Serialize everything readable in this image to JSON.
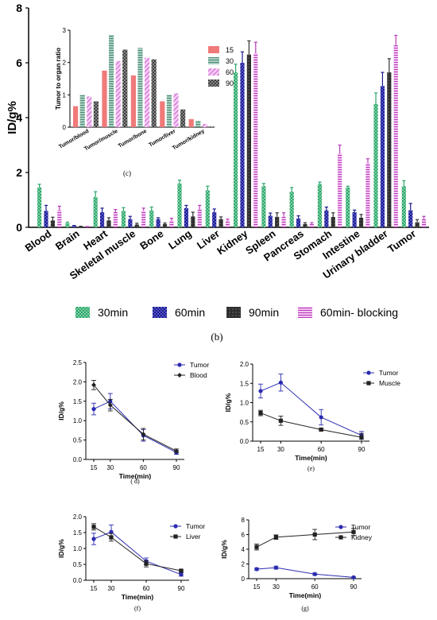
{
  "colors": {
    "m30": "#2ca56b",
    "m60": "#1a1a8c",
    "m90": "#333333",
    "m60b": "#b83ab8",
    "inset15": "#f07a7a",
    "inset30": "#6aa08e",
    "inset60": "#e99be9",
    "inset90": "#555555",
    "lineTumor": "#2b2bb0",
    "lineOther": "#222222"
  },
  "chart_data": [
    {
      "id": "b",
      "type": "bar",
      "caption": "(b)",
      "ylabel": "ID/g%",
      "ylim": [
        0,
        8
      ],
      "yticks": [
        "0",
        "2",
        "4",
        "6",
        "8"
      ],
      "categories": [
        "Blood",
        "Brain",
        "Heart",
        "Skeletal muscle",
        "Bone",
        "Lung",
        "Liver",
        "Kidney",
        "Spleen",
        "Pancreas",
        "Stomach",
        "Intestine",
        "Urinary bladder",
        "Tumor"
      ],
      "series": [
        {
          "name": "30min",
          "values": [
            1.45,
            0.15,
            1.1,
            0.6,
            0.62,
            1.6,
            1.35,
            5.65,
            1.5,
            1.3,
            1.58,
            1.45,
            4.5,
            1.5
          ],
          "errors": [
            0.12,
            0.04,
            0.2,
            0.12,
            0.12,
            0.12,
            0.15,
            0.3,
            0.1,
            0.15,
            0.07,
            0.05,
            0.4,
            0.2
          ]
        },
        {
          "name": "60min",
          "values": [
            0.6,
            0.05,
            0.55,
            0.3,
            0.3,
            0.7,
            0.55,
            6.0,
            0.42,
            0.32,
            0.62,
            0.55,
            5.15,
            0.62
          ],
          "errors": [
            0.2,
            0.02,
            0.15,
            0.1,
            0.05,
            0.1,
            0.12,
            0.4,
            0.1,
            0.1,
            0.12,
            0.08,
            0.5,
            0.25
          ]
        },
        {
          "name": "90min",
          "values": [
            0.25,
            0.03,
            0.25,
            0.1,
            0.12,
            0.4,
            0.3,
            6.3,
            0.38,
            0.12,
            0.38,
            0.35,
            5.65,
            0.18
          ],
          "errors": [
            0.12,
            0.01,
            0.1,
            0.05,
            0.04,
            0.15,
            0.08,
            0.5,
            0.15,
            0.05,
            0.15,
            0.12,
            0.5,
            0.1
          ]
        },
        {
          "name": "60min- blocking",
          "values": [
            0.62,
            0.02,
            0.55,
            0.6,
            0.25,
            0.65,
            0.25,
            6.35,
            0.38,
            0.12,
            2.7,
            2.35,
            6.65,
            0.3
          ],
          "errors": [
            0.15,
            0.01,
            0.1,
            0.1,
            0.08,
            0.15,
            0.05,
            0.4,
            0.15,
            0.05,
            0.3,
            0.15,
            0.35,
            0.1
          ]
        }
      ],
      "legend": "bottom"
    },
    {
      "id": "c",
      "type": "bar",
      "caption": "(c)",
      "ylabel": "Tumor to organ ratio",
      "ylim": [
        0,
        3
      ],
      "yticks": [
        "0",
        "1",
        "2",
        "3"
      ],
      "categories": [
        "Tumor/blood",
        "Tumor/muscle",
        "Tumor/bone",
        "Tumor/liver",
        "Tumor/kidney"
      ],
      "series": [
        {
          "name": "15",
          "values": [
            0.65,
            1.75,
            1.6,
            0.8,
            0.25
          ]
        },
        {
          "name": "30",
          "values": [
            1.0,
            2.85,
            2.45,
            1.0,
            0.2
          ]
        },
        {
          "name": "60",
          "values": [
            0.95,
            2.05,
            2.15,
            1.05,
            0.1
          ]
        },
        {
          "name": "90",
          "values": [
            0.8,
            2.4,
            2.1,
            0.55,
            0.02
          ]
        }
      ],
      "legend": "right"
    },
    {
      "id": "d",
      "type": "line",
      "caption": "( d)",
      "xlabel": "Time(min)",
      "ylabel": "ID/g%",
      "x": [
        15,
        30,
        60,
        90
      ],
      "xticks": [
        "15",
        "30",
        "60",
        "90"
      ],
      "ylim": [
        0,
        2.5
      ],
      "yticks": [
        "0.0",
        "0.5",
        "1.0",
        "1.5",
        "2.0",
        "2.5"
      ],
      "series": [
        {
          "name": "Tumor",
          "values": [
            1.3,
            1.5,
            0.62,
            0.18
          ],
          "errors": [
            0.15,
            0.2,
            0.15,
            0.05
          ]
        },
        {
          "name": "Blood",
          "values": [
            1.92,
            1.4,
            0.65,
            0.22
          ],
          "errors": [
            0.12,
            0.15,
            0.15,
            0.05
          ]
        }
      ],
      "legend": "top-right"
    },
    {
      "id": "e",
      "type": "line",
      "caption": "(e)",
      "xlabel": "Time(min)",
      "ylabel": "ID/g%",
      "x": [
        15,
        30,
        60,
        90
      ],
      "xticks": [
        "15",
        "30",
        "60",
        "90"
      ],
      "ylim": [
        0,
        2.0
      ],
      "yticks": [
        "0.0",
        "0.5",
        "1.0",
        "1.5",
        "2.0"
      ],
      "series": [
        {
          "name": "Tumor",
          "values": [
            1.3,
            1.52,
            0.62,
            0.15
          ],
          "errors": [
            0.18,
            0.22,
            0.2,
            0.1
          ]
        },
        {
          "name": "Muscle",
          "values": [
            0.73,
            0.53,
            0.3,
            0.1
          ],
          "errors": [
            0.07,
            0.12,
            0.03,
            0.1
          ]
        }
      ],
      "legend": "top-right"
    },
    {
      "id": "f",
      "type": "line",
      "caption": "(f)",
      "xlabel": "Time(min)",
      "ylabel": "ID/g%",
      "x": [
        15,
        30,
        60,
        90
      ],
      "xticks": [
        "15",
        "30",
        "60",
        "90"
      ],
      "ylim": [
        0,
        2.0
      ],
      "yticks": [
        "0.0",
        "0.5",
        "1.0",
        "1.5",
        "2.0"
      ],
      "series": [
        {
          "name": "Tumor",
          "values": [
            1.3,
            1.52,
            0.6,
            0.18
          ],
          "errors": [
            0.18,
            0.22,
            0.1,
            0.05
          ]
        },
        {
          "name": "Liver",
          "values": [
            1.68,
            1.35,
            0.52,
            0.3
          ],
          "errors": [
            0.1,
            0.12,
            0.1,
            0.03
          ]
        }
      ],
      "legend": "top-right"
    },
    {
      "id": "g",
      "type": "line",
      "caption": "(g)",
      "xlabel": "Time(min)",
      "ylabel": "ID/g%",
      "x": [
        15,
        30,
        60,
        90
      ],
      "xticks": [
        "15",
        "30",
        "60",
        "90"
      ],
      "ylim": [
        0,
        8
      ],
      "yticks": [
        "0",
        "2",
        "4",
        "6",
        "8"
      ],
      "series": [
        {
          "name": "Tumor",
          "values": [
            1.3,
            1.5,
            0.62,
            0.18
          ],
          "errors": [
            0.15,
            0.2,
            0.15,
            0.05
          ]
        },
        {
          "name": "Kidney",
          "values": [
            4.3,
            5.65,
            6.0,
            6.35
          ],
          "errors": [
            0.4,
            0.3,
            0.7,
            0.5
          ]
        }
      ],
      "legend": "top-right"
    }
  ]
}
